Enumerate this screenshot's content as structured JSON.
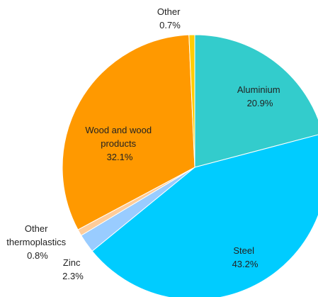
{
  "chart_data": {
    "type": "pie",
    "start_angle_deg": 0,
    "direction": "clockwise",
    "slices": [
      {
        "label": "Aluminium",
        "value": 20.9,
        "value_label": "20.9%",
        "color": "#33cccc"
      },
      {
        "label": "Steel",
        "value": 43.2,
        "value_label": "43.2%",
        "color": "#00ccff"
      },
      {
        "label": "Zinc",
        "value": 2.3,
        "value_label": "2.3%",
        "color": "#99ccff"
      },
      {
        "label": "Other thermoplastics",
        "value": 0.8,
        "value_label": "0.8%",
        "color": "#ffcc99"
      },
      {
        "label": "Wood and wood products",
        "value": 32.1,
        "value_label": "32.1%",
        "color": "#ff9900"
      },
      {
        "label": "Other",
        "value": 0.7,
        "value_label": "0.7%",
        "color": "#ffcc00"
      }
    ]
  }
}
